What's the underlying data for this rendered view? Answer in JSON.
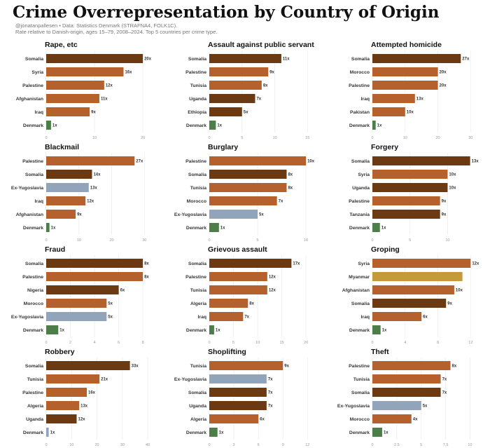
{
  "header": {
    "title": "Crime Overrepresentation by Country of Origin",
    "subtitle1": "@jonatanpallesen • Data: Statistics Denmark (STRAFNA4, FOLK1C).",
    "subtitle2": "Rate relative to Danish-origin, ages 15–79, 2008–2024. Top 5 countries per crime type."
  },
  "colors": {
    "dark_brown": "#6b3a12",
    "brown": "#b4612e",
    "grey_blue": "#92a4ba",
    "gold": "#c49a3a",
    "green": "#4d7e4a"
  },
  "chart_data": [
    {
      "type": "bar",
      "title": "Rape, etc",
      "categories": [
        "Somalia",
        "Syria",
        "Palestine",
        "Afghanistan",
        "Iraq",
        "Denmark"
      ],
      "values": [
        20,
        16,
        12,
        11,
        9,
        1
      ],
      "labels": [
        "20x",
        "16x",
        "12x",
        "11x",
        "9x",
        "1x"
      ],
      "colors": [
        "dark_brown",
        "brown",
        "brown",
        "brown",
        "brown",
        "green"
      ],
      "xticks": [
        0,
        10,
        20
      ],
      "xlim": [
        0,
        21
      ]
    },
    {
      "type": "bar",
      "title": "Assault against public servant",
      "categories": [
        "Somalia",
        "Palestine",
        "Tunisia",
        "Uganda",
        "Ethiopia",
        "Denmark"
      ],
      "values": [
        11,
        9,
        8,
        7,
        5,
        1
      ],
      "labels": [
        "11x",
        "9x",
        "8x",
        "7x",
        "5x",
        "1x"
      ],
      "colors": [
        "dark_brown",
        "brown",
        "brown",
        "dark_brown",
        "dark_brown",
        "green"
      ],
      "xticks": [
        0,
        5,
        10,
        15
      ],
      "xlim": [
        0,
        15.5
      ]
    },
    {
      "type": "bar",
      "title": "Attempted homicide",
      "categories": [
        "Somalia",
        "Morocco",
        "Palestine",
        "Iraq",
        "Pakistan",
        "Denmark"
      ],
      "values": [
        27,
        20,
        20,
        13,
        10,
        1
      ],
      "labels": [
        "27x",
        "20x",
        "20x",
        "13x",
        "10x",
        "1x"
      ],
      "colors": [
        "dark_brown",
        "brown",
        "brown",
        "brown",
        "brown",
        "green"
      ],
      "xticks": [
        0,
        10,
        20,
        30
      ],
      "xlim": [
        0,
        31
      ]
    },
    {
      "type": "bar",
      "title": "Blackmail",
      "categories": [
        "Palestine",
        "Somalia",
        "Ex-Yugoslavia",
        "Iraq",
        "Afghanistan",
        "Denmark"
      ],
      "values": [
        27,
        14,
        13,
        12,
        9,
        1
      ],
      "labels": [
        "27x",
        "14x",
        "13x",
        "12x",
        "9x",
        "1x"
      ],
      "colors": [
        "brown",
        "dark_brown",
        "grey_blue",
        "brown",
        "brown",
        "green"
      ],
      "xticks": [
        0,
        10,
        20,
        30
      ],
      "xlim": [
        0,
        31
      ]
    },
    {
      "type": "bar",
      "title": "Burglary",
      "categories": [
        "Palestine",
        "Somalia",
        "Tunisia",
        "Morocco",
        "Ex-Yugoslavia",
        "Denmark"
      ],
      "values": [
        10,
        8,
        8,
        7,
        5,
        1
      ],
      "labels": [
        "10x",
        "8x",
        "8x",
        "7x",
        "5x",
        "1x"
      ],
      "colors": [
        "brown",
        "dark_brown",
        "brown",
        "brown",
        "grey_blue",
        "green"
      ],
      "xticks": [
        0,
        5,
        10
      ],
      "xlim": [
        0,
        10.5
      ]
    },
    {
      "type": "bar",
      "title": "Forgery",
      "categories": [
        "Somalia",
        "Syria",
        "Uganda",
        "Palestine",
        "Tanzania",
        "Denmark"
      ],
      "values": [
        13,
        10,
        10,
        9,
        9,
        1
      ],
      "labels": [
        "13x",
        "10x",
        "10x",
        "9x",
        "9x",
        "1x"
      ],
      "colors": [
        "dark_brown",
        "brown",
        "dark_brown",
        "brown",
        "dark_brown",
        "green"
      ],
      "xticks": [
        0,
        5,
        10
      ],
      "xlim": [
        0,
        13.5
      ]
    },
    {
      "type": "bar",
      "title": "Fraud",
      "categories": [
        "Somalia",
        "Palestine",
        "Nigeria",
        "Morocco",
        "Ex-Yugoslavia",
        "Denmark"
      ],
      "values": [
        8,
        8,
        6,
        5,
        5,
        1
      ],
      "labels": [
        "8x",
        "8x",
        "6x",
        "5x",
        "5x",
        "1x"
      ],
      "colors": [
        "dark_brown",
        "brown",
        "dark_brown",
        "brown",
        "grey_blue",
        "green"
      ],
      "xticks": [
        0,
        2,
        4,
        6,
        8
      ],
      "xlim": [
        0,
        8.4
      ]
    },
    {
      "type": "bar",
      "title": "Grievous assault",
      "categories": [
        "Somalia",
        "Palestine",
        "Tunisia",
        "Algeria",
        "Iraq",
        "Denmark"
      ],
      "values": [
        17,
        12,
        12,
        8,
        7,
        1
      ],
      "labels": [
        "17x",
        "12x",
        "12x",
        "8x",
        "7x",
        "1x"
      ],
      "colors": [
        "dark_brown",
        "brown",
        "brown",
        "brown",
        "brown",
        "green"
      ],
      "xticks": [
        0,
        5,
        10,
        15,
        20
      ],
      "xlim": [
        0,
        21
      ]
    },
    {
      "type": "bar",
      "title": "Groping",
      "categories": [
        "Syria",
        "Myanmar",
        "Afghanistan",
        "Somalia",
        "Iraq",
        "Denmark"
      ],
      "values": [
        12,
        11,
        10,
        9,
        6,
        1
      ],
      "labels": [
        "12x",
        "",
        "10x",
        "9x",
        "6x",
        "1x"
      ],
      "colors": [
        "brown",
        "gold",
        "brown",
        "dark_brown",
        "brown",
        "green"
      ],
      "xticks": [
        0,
        4,
        8,
        12
      ],
      "xlim": [
        0,
        12.4
      ]
    },
    {
      "type": "bar",
      "title": "Robbery",
      "categories": [
        "Somalia",
        "Tunisia",
        "Palestine",
        "Algeria",
        "Uganda",
        "Denmark"
      ],
      "values": [
        33,
        21,
        16,
        13,
        12,
        1
      ],
      "labels": [
        "33x",
        "21x",
        "16x",
        "13x",
        "12x",
        "1x"
      ],
      "colors": [
        "dark_brown",
        "brown",
        "brown",
        "brown",
        "dark_brown",
        "grey_blue"
      ],
      "xticks": [
        0,
        10,
        20,
        30,
        40
      ],
      "xlim": [
        0,
        40
      ]
    },
    {
      "type": "bar",
      "title": "Shoplifting",
      "categories": [
        "Tunisia",
        "Ex-Yugoslavia",
        "Somalia",
        "Uganda",
        "Algeria",
        "Denmark"
      ],
      "values": [
        9,
        7,
        7,
        7,
        6,
        1
      ],
      "labels": [
        "9x",
        "7x",
        "7x",
        "7x",
        "6x",
        "1x"
      ],
      "colors": [
        "brown",
        "grey_blue",
        "dark_brown",
        "dark_brown",
        "brown",
        "green"
      ],
      "xticks": [
        0,
        3,
        6,
        9,
        12
      ],
      "xlim": [
        0,
        12.4
      ]
    },
    {
      "type": "bar",
      "title": "Theft",
      "categories": [
        "Palestine",
        "Tunisia",
        "Somalia",
        "Ex-Yugoslavia",
        "Morocco",
        "Denmark"
      ],
      "values": [
        8,
        7,
        7,
        5,
        4,
        1
      ],
      "labels": [
        "8x",
        "7x",
        "7x",
        "5x",
        "4x",
        "1x"
      ],
      "colors": [
        "brown",
        "brown",
        "dark_brown",
        "grey_blue",
        "brown",
        "green"
      ],
      "xticks": [
        0,
        2.5,
        5,
        7.5,
        10
      ],
      "xlim": [
        0,
        10.4
      ]
    }
  ]
}
